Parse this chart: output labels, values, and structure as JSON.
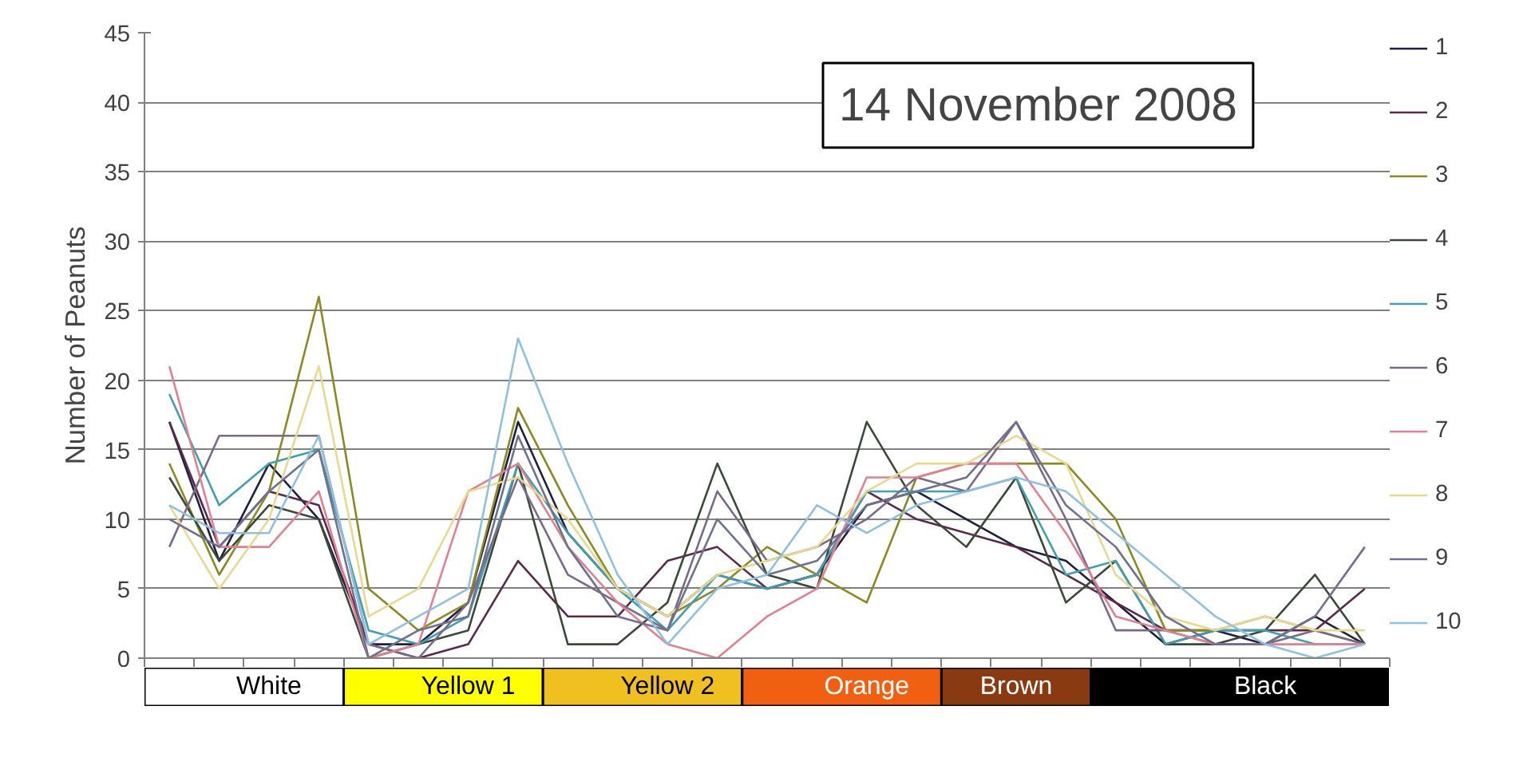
{
  "chart_data": {
    "type": "line",
    "title": "14 November 2008",
    "ylabel": "Number of Peanuts",
    "categories": [
      null,
      null,
      "White",
      null,
      null,
      null,
      "Yellow 1",
      null,
      null,
      null,
      "Yellow 2",
      null,
      null,
      null,
      "Orange",
      null,
      null,
      "Brown",
      null,
      null,
      null,
      null,
      "Black",
      null,
      null
    ],
    "ylim": [
      0,
      45
    ],
    "yticks": [
      0,
      5,
      10,
      15,
      20,
      25,
      30,
      35,
      40,
      45
    ],
    "grid": "y",
    "legend": "right",
    "marker": "none",
    "line_style": "solid",
    "series": [
      {
        "name": "1",
        "color": "#1f1f3f",
        "values": [
          17,
          7,
          14,
          10,
          1,
          1,
          4,
          17,
          9,
          5,
          3,
          6,
          5,
          6,
          11,
          12,
          10,
          8,
          7,
          4,
          1,
          2,
          1,
          3,
          1
        ]
      },
      {
        "name": "2",
        "color": "#5a2a4a",
        "values": [
          17,
          8,
          12,
          11,
          1,
          0,
          1,
          7,
          3,
          3,
          7,
          8,
          5,
          6,
          12,
          10,
          9,
          8,
          6,
          4,
          2,
          2,
          2,
          2,
          5
        ]
      },
      {
        "name": "3",
        "color": "#8a8a20",
        "values": [
          14,
          6,
          12,
          26,
          5,
          2,
          4,
          18,
          11,
          5,
          3,
          5,
          8,
          6,
          4,
          13,
          14,
          14,
          14,
          10,
          2,
          2,
          3,
          2,
          1
        ]
      },
      {
        "name": "4",
        "color": "#3a4a3a",
        "values": [
          13,
          7,
          11,
          10,
          0,
          1,
          2,
          14,
          1,
          1,
          4,
          14,
          6,
          5,
          17,
          11,
          8,
          13,
          4,
          7,
          1,
          1,
          2,
          6,
          1
        ]
      },
      {
        "name": "5",
        "color": "#40a0b0",
        "values": [
          19,
          11,
          14,
          15,
          2,
          1,
          3,
          14,
          9,
          5,
          2,
          6,
          5,
          6,
          12,
          12,
          12,
          13,
          6,
          7,
          1,
          2,
          2,
          1,
          1
        ]
      },
      {
        "name": "6",
        "color": "#7a6a8a",
        "values": [
          8,
          16,
          16,
          16,
          1,
          0,
          4,
          13,
          6,
          4,
          2,
          12,
          7,
          8,
          10,
          13,
          12,
          17,
          10,
          2,
          2,
          1,
          1,
          2,
          1
        ]
      },
      {
        "name": "7",
        "color": "#e08090",
        "values": [
          21,
          8,
          8,
          12,
          0,
          1,
          12,
          14,
          8,
          4,
          1,
          0,
          3,
          5,
          13,
          13,
          14,
          14,
          9,
          3,
          2,
          1,
          1,
          1,
          1
        ]
      },
      {
        "name": "8",
        "color": "#e8d890",
        "values": [
          11,
          5,
          10,
          21,
          3,
          5,
          12,
          13,
          10,
          5,
          3,
          6,
          7,
          8,
          12,
          14,
          14,
          16,
          14,
          6,
          3,
          2,
          3,
          2,
          2
        ]
      },
      {
        "name": "9",
        "color": "#707090",
        "values": [
          10,
          8,
          12,
          15,
          0,
          2,
          3,
          16,
          8,
          3,
          2,
          10,
          6,
          7,
          11,
          12,
          13,
          17,
          11,
          8,
          3,
          1,
          1,
          3,
          8
        ]
      },
      {
        "name": "10",
        "color": "#90c0e0",
        "values": [
          11,
          9,
          9,
          16,
          1,
          3,
          5,
          23,
          14,
          6,
          1,
          5,
          6,
          11,
          9,
          11,
          12,
          13,
          12,
          9,
          6,
          3,
          1,
          0,
          1
        ]
      }
    ]
  }
}
